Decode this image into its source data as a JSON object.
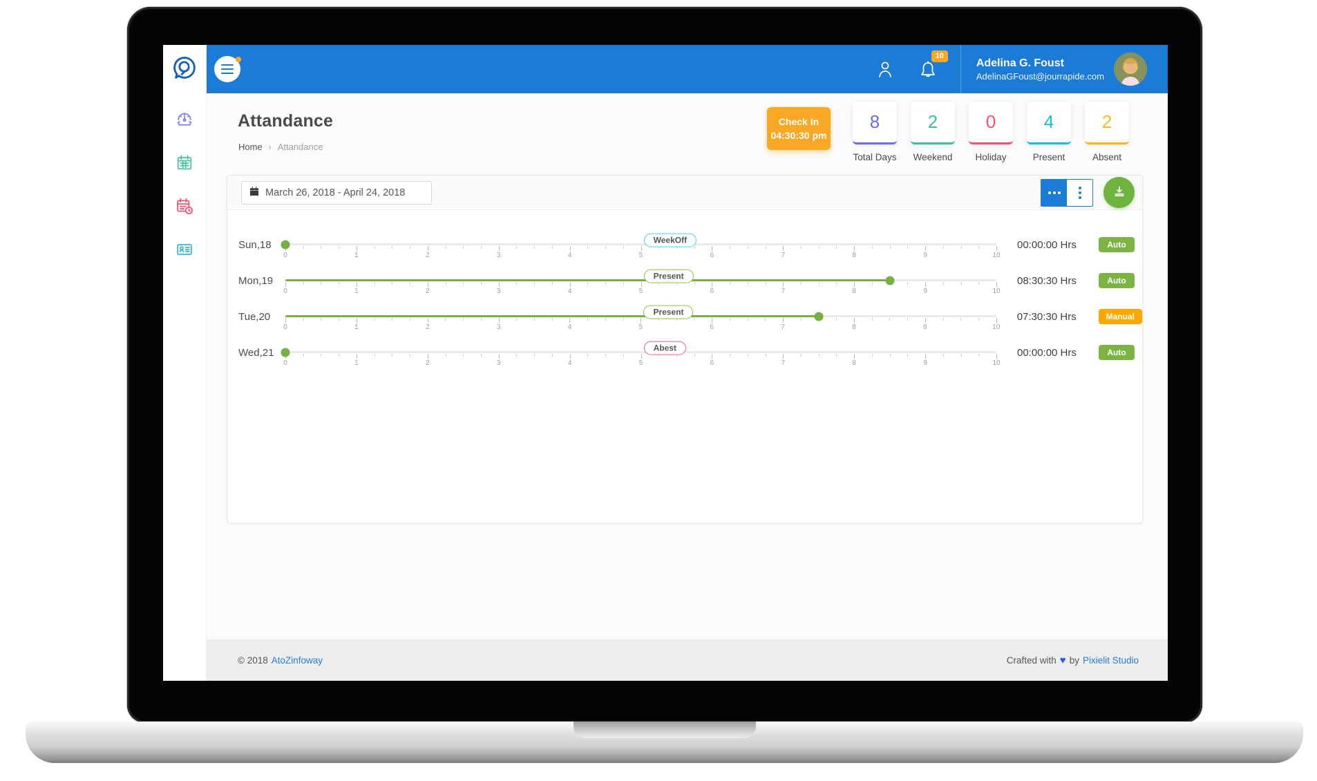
{
  "colors": {
    "blue": "#1c7cd5",
    "green": "#76b041",
    "orange": "#f9a826",
    "link": "#2b7cd3"
  },
  "header": {
    "user_name": "Adelina G. Foust",
    "user_email": "AdelinaGFoust@jourrapide.com",
    "notification_count": "10"
  },
  "sidebar": {
    "items": [
      {
        "name": "dashboard",
        "icon": "gauge-icon",
        "color": "#7b7ff2"
      },
      {
        "name": "calendar",
        "icon": "calendar-icon",
        "color": "#45c4a4"
      },
      {
        "name": "attendance",
        "icon": "calendar-clock-icon",
        "color": "#f4516c"
      },
      {
        "name": "employees",
        "icon": "id-card-icon",
        "color": "#33b5e5"
      }
    ]
  },
  "page": {
    "title": "Attandance",
    "breadcrumb": {
      "home": "Home",
      "separator": "›",
      "current": "Attandance"
    }
  },
  "check_in": {
    "label": "Check In",
    "time": "04:30:30 pm"
  },
  "stats": [
    {
      "value": "8",
      "label": "Total Days",
      "color": "#6a6bee"
    },
    {
      "value": "2",
      "label": "Weekend",
      "color": "#3dbd9d"
    },
    {
      "value": "0",
      "label": "Holiday",
      "color": "#f4516c"
    },
    {
      "value": "4",
      "label": "Present",
      "color": "#16bedc"
    },
    {
      "value": "2",
      "label": "Absent",
      "color": "#fbb624"
    }
  ],
  "toolbar": {
    "date_range": "March 26, 2018 - April 24, 2018"
  },
  "attendance": {
    "axis": {
      "min": 0,
      "max": 10,
      "ticks": [
        0,
        1,
        2,
        3,
        4,
        5,
        6,
        7,
        8,
        9,
        10
      ]
    },
    "rows": [
      {
        "day": "Sun,18",
        "status": "WeekOff",
        "status_color": "#4dd0e1",
        "value": 0,
        "hours": "00:00:00 Hrs",
        "mode": "Auto",
        "mode_color": "#7cb342"
      },
      {
        "day": "Mon,19",
        "status": "Present",
        "status_color": "#8bc34a",
        "value": 8.5,
        "hours": "08:30:30 Hrs",
        "mode": "Auto",
        "mode_color": "#7cb342"
      },
      {
        "day": "Tue,20",
        "status": "Present",
        "status_color": "#8bc34a",
        "value": 7.5,
        "hours": "07:30:30 Hrs",
        "mode": "Manual",
        "mode_color": "#fba800"
      },
      {
        "day": "Wed,21",
        "status": "Abest",
        "status_color": "#f06292",
        "value": 0,
        "hours": "00:00:00 Hrs",
        "mode": "Auto",
        "mode_color": "#7cb342"
      }
    ]
  },
  "footer": {
    "copyright": "© 2018",
    "brand": "AtoZinfoway",
    "crafted_prefix": "Crafted with",
    "heart_icon": "♥",
    "crafted_by": "by",
    "studio": "Pixielit Studio"
  }
}
